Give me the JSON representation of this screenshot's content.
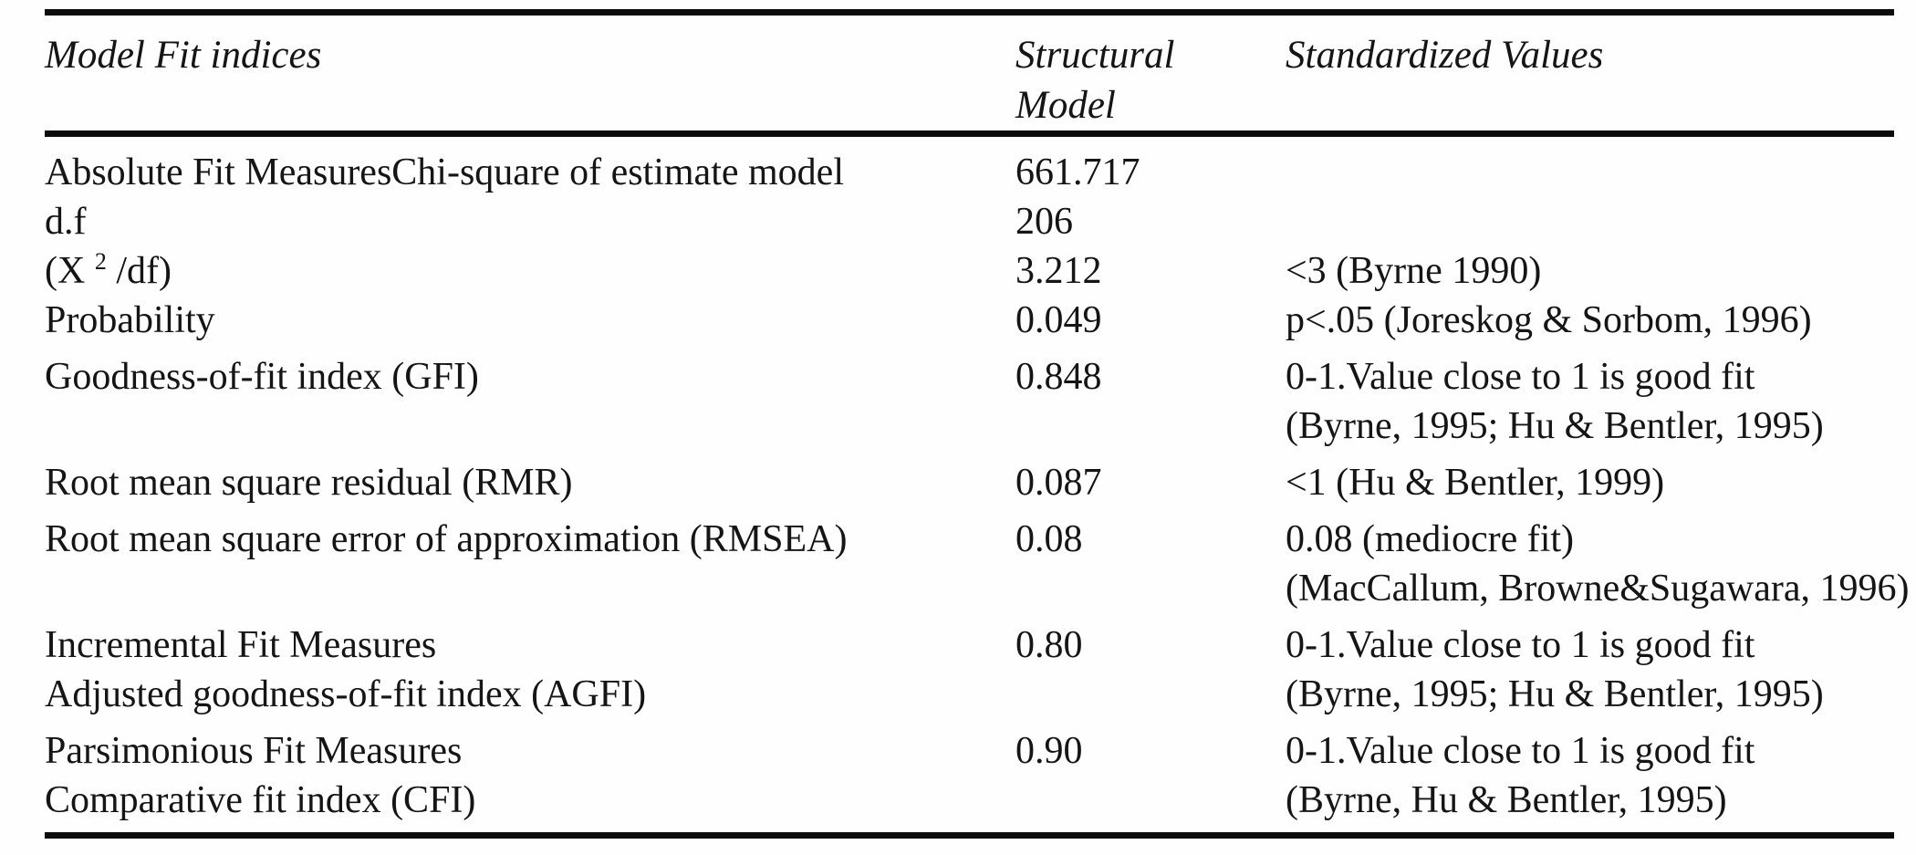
{
  "colors": {
    "text": "#151515",
    "rule": "#0c0c0c",
    "background": "#fefefe"
  },
  "table": {
    "header": {
      "model_fit_indices": "Model Fit indices",
      "structural_model": "Structural Model",
      "standardized_values": "Standardized Values"
    },
    "rows": [
      {
        "label_lines": [
          [
            {
              "text": "Absolute Fit MeasuresChi-square of estimate model"
            }
          ]
        ],
        "value": "661.717",
        "standard_lines": [],
        "group_gap": false
      },
      {
        "label_lines": [
          [
            {
              "text": "d.f"
            }
          ]
        ],
        "value": "206",
        "standard_lines": [],
        "group_gap": false
      },
      {
        "label_lines": [
          [
            {
              "text": "(X "
            },
            {
              "text": "2",
              "sup": true
            },
            {
              "text": " /df)"
            }
          ]
        ],
        "value": "3.212",
        "standard_lines": [
          "<3 (Byrne 1990)"
        ],
        "group_gap": false
      },
      {
        "label_lines": [
          [
            {
              "text": "Probability"
            }
          ]
        ],
        "value": "0.049",
        "standard_lines": [
          "p<.05 (Joreskog & Sorbom, 1996)"
        ],
        "group_gap": false
      },
      {
        "label_lines": [
          [
            {
              "text": "Goodness-of-fit index (GFI)"
            }
          ]
        ],
        "value": "0.848",
        "standard_lines": [
          "0-1.Value close to 1 is good fit",
          "(Byrne, 1995; Hu & Bentler, 1995)"
        ],
        "group_gap": true
      },
      {
        "label_lines": [
          [
            {
              "text": "Root mean square residual (RMR)"
            }
          ]
        ],
        "value": "0.087",
        "standard_lines": [
          "<1 (Hu & Bentler, 1999)"
        ],
        "group_gap": true
      },
      {
        "label_lines": [
          [
            {
              "text": "Root mean square error of approximation (RMSEA)"
            }
          ]
        ],
        "value": "0.08",
        "standard_lines": [
          "0.08 (mediocre fit)",
          "(MacCallum, Browne&Sugawara, 1996)"
        ],
        "group_gap": true
      },
      {
        "label_lines": [
          [
            {
              "text": "Incremental Fit Measures"
            }
          ],
          [
            {
              "text": "Adjusted goodness-of-fit index (AGFI)"
            }
          ]
        ],
        "value": "0.80",
        "standard_lines": [
          "0-1.Value close to 1 is good fit",
          "(Byrne, 1995; Hu & Bentler, 1995)"
        ],
        "group_gap": true
      },
      {
        "label_lines": [
          [
            {
              "text": "Parsimonious Fit Measures"
            }
          ],
          [
            {
              "text": "Comparative fit index (CFI)"
            }
          ]
        ],
        "value": "0.90",
        "standard_lines": [
          "0-1.Value close to 1 is good fit",
          "(Byrne, Hu & Bentler, 1995)"
        ],
        "group_gap": true
      }
    ]
  }
}
